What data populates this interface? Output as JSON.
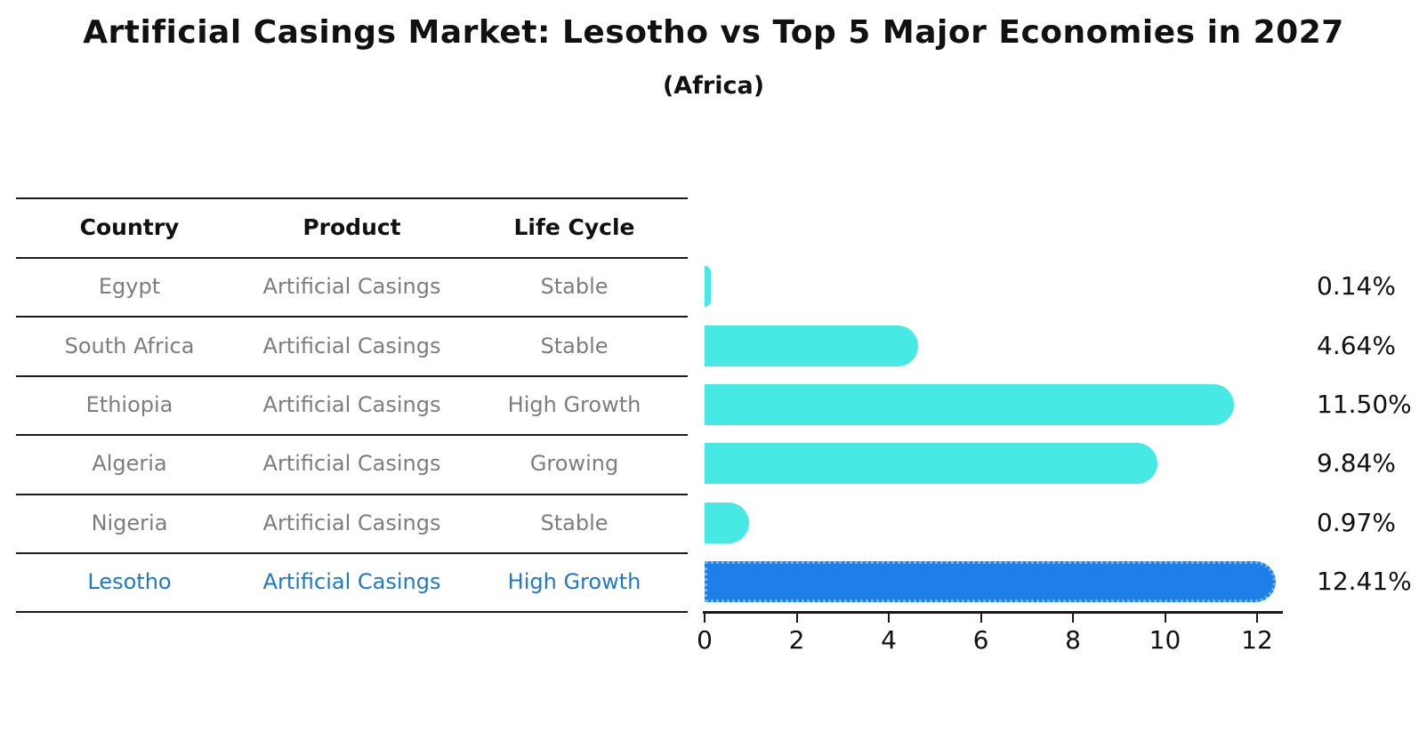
{
  "header": {
    "title": "Artificial Casings Market: Lesotho vs Top 5 Major Economies in 2027",
    "subtitle": "(Africa)"
  },
  "table": {
    "headers": [
      "Country",
      "Product",
      "Life Cycle"
    ],
    "rows": [
      {
        "country": "Egypt",
        "product": "Artificial Casings",
        "life_cycle": "Stable",
        "highlighted": false
      },
      {
        "country": "South Africa",
        "product": "Artificial Casings",
        "life_cycle": "Stable",
        "highlighted": false
      },
      {
        "country": "Ethiopia",
        "product": "Artificial Casings",
        "life_cycle": "High Growth",
        "highlighted": false
      },
      {
        "country": "Algeria",
        "product": "Artificial Casings",
        "life_cycle": "Growing",
        "highlighted": false
      },
      {
        "country": "Nigeria",
        "product": "Artificial Casings",
        "life_cycle": "Stable",
        "highlighted": false
      },
      {
        "country": "Lesotho",
        "product": "Artificial Casings",
        "life_cycle": "High Growth",
        "highlighted": true
      }
    ]
  },
  "chart_data": {
    "type": "bar",
    "orientation": "horizontal",
    "title": "Artificial Casings Market: Lesotho vs Top 5 Major Economies in 2027 (Africa)",
    "xlabel": "",
    "ylabel": "",
    "categories": [
      "Egypt",
      "South Africa",
      "Ethiopia",
      "Algeria",
      "Nigeria",
      "Lesotho"
    ],
    "values": [
      0.14,
      4.64,
      11.5,
      9.84,
      0.97,
      12.41
    ],
    "value_labels": [
      "0.14%",
      "4.64%",
      "11.50%",
      "9.84%",
      "0.97%",
      "12.41%"
    ],
    "xlim": [
      0,
      12.56
    ],
    "xticks": [
      0,
      2,
      4,
      6,
      8,
      10,
      12
    ],
    "grid": false,
    "legend": "none",
    "highlight_index": 5
  },
  "colors": {
    "bar_cyan": "#46e9e4",
    "bar_blue": "#1f7fe9",
    "highlight_text_blue": "#1f78c8",
    "row_text_gray": "#7d7d7d",
    "header_text": "#111111"
  }
}
